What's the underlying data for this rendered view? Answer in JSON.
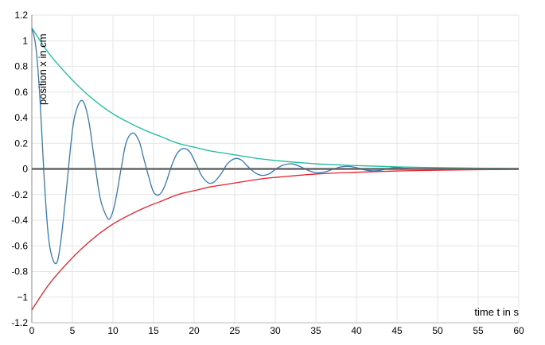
{
  "chart_data": {
    "type": "line",
    "xlabel": "time t in s",
    "ylabel": "position x in cm",
    "xlim": [
      0,
      60
    ],
    "ylim": [
      -1.2,
      1.2
    ],
    "x_ticks": [
      0,
      5,
      10,
      15,
      20,
      25,
      30,
      35,
      40,
      45,
      50,
      55,
      60
    ],
    "x_tick_labels": [
      "0",
      "5",
      "10",
      "15",
      "20",
      "25",
      "30",
      "35",
      "40",
      "45",
      "50",
      "55",
      "60"
    ],
    "y_ticks": [
      1.2,
      1,
      0.8,
      0.6,
      0.4,
      0.2,
      0,
      -0.2,
      -0.4,
      -0.6,
      -0.8,
      -1,
      -1.2
    ],
    "y_tick_labels": [
      "1.2",
      "1",
      "0.8",
      "0.6",
      "0.4",
      "0.2",
      "0",
      "-0.2",
      "-0.4",
      "-0.6",
      "-0.8",
      "−1",
      "-1.2"
    ],
    "grid": true,
    "series": [
      {
        "color": "#1abc9c",
        "x": [
          0,
          2,
          4,
          6,
          8,
          10,
          12,
          14,
          16,
          18,
          20,
          22,
          24,
          26,
          28,
          30,
          35,
          40,
          45,
          50,
          55,
          60
        ],
        "y": [
          1.1,
          0.91,
          0.76,
          0.63,
          0.52,
          0.43,
          0.36,
          0.3,
          0.25,
          0.2,
          0.17,
          0.14,
          0.12,
          0.1,
          0.08,
          0.066,
          0.04,
          0.026,
          0.016,
          0.01,
          0.006,
          0.004
        ]
      },
      {
        "color": "#e8202a",
        "x": [
          0,
          2,
          4,
          6,
          8,
          10,
          12,
          14,
          16,
          18,
          20,
          22,
          24,
          26,
          28,
          30,
          35,
          40,
          45,
          50,
          55,
          60
        ],
        "y": [
          -1.1,
          -0.91,
          -0.76,
          -0.63,
          -0.52,
          -0.43,
          -0.36,
          -0.3,
          -0.25,
          -0.2,
          -0.17,
          -0.14,
          -0.12,
          -0.1,
          -0.08,
          -0.066,
          -0.04,
          -0.026,
          -0.016,
          -0.01,
          -0.006,
          -0.004
        ]
      },
      {
        "color": "#3a78b5",
        "x": [
          0,
          0.5,
          1,
          1.5,
          2,
          2.5,
          3.1,
          3.6,
          4.2,
          5,
          5.6,
          6.3,
          7,
          7.6,
          8.4,
          9.2,
          9.7,
          10.3,
          11,
          11.6,
          12.4,
          13.2,
          13.8,
          14.4,
          15,
          15.7,
          16.4,
          17.2,
          17.9,
          18.7,
          19.5,
          20.3,
          21,
          21.8,
          22.5,
          23.3,
          24.1,
          25,
          25.8,
          26.6,
          27.5,
          28.3,
          29.2,
          30.1,
          31,
          32,
          33,
          34,
          35,
          36,
          37,
          38,
          39,
          40,
          41,
          42,
          43,
          44,
          45,
          46,
          48,
          50,
          52,
          55,
          60
        ],
        "y": [
          1.1,
          0.95,
          0.55,
          -0.05,
          -0.5,
          -0.69,
          -0.73,
          -0.55,
          -0.2,
          0.3,
          0.48,
          0.53,
          0.38,
          0.12,
          -0.22,
          -0.37,
          -0.38,
          -0.25,
          0.0,
          0.2,
          0.28,
          0.22,
          0.08,
          -0.06,
          -0.18,
          -0.2,
          -0.13,
          0.02,
          0.12,
          0.16,
          0.13,
          0.03,
          -0.06,
          -0.11,
          -0.1,
          -0.04,
          0.04,
          0.08,
          0.07,
          0.02,
          -0.03,
          -0.05,
          -0.04,
          -0.0,
          0.03,
          0.04,
          0.02,
          -0.01,
          -0.03,
          -0.025,
          -0.005,
          0.015,
          0.02,
          0.01,
          -0.008,
          -0.015,
          -0.01,
          0.004,
          0.01,
          0.005,
          0.0,
          0.004,
          0.0,
          0.0,
          0.0
        ]
      }
    ],
    "zero_line_color": "#666666"
  }
}
